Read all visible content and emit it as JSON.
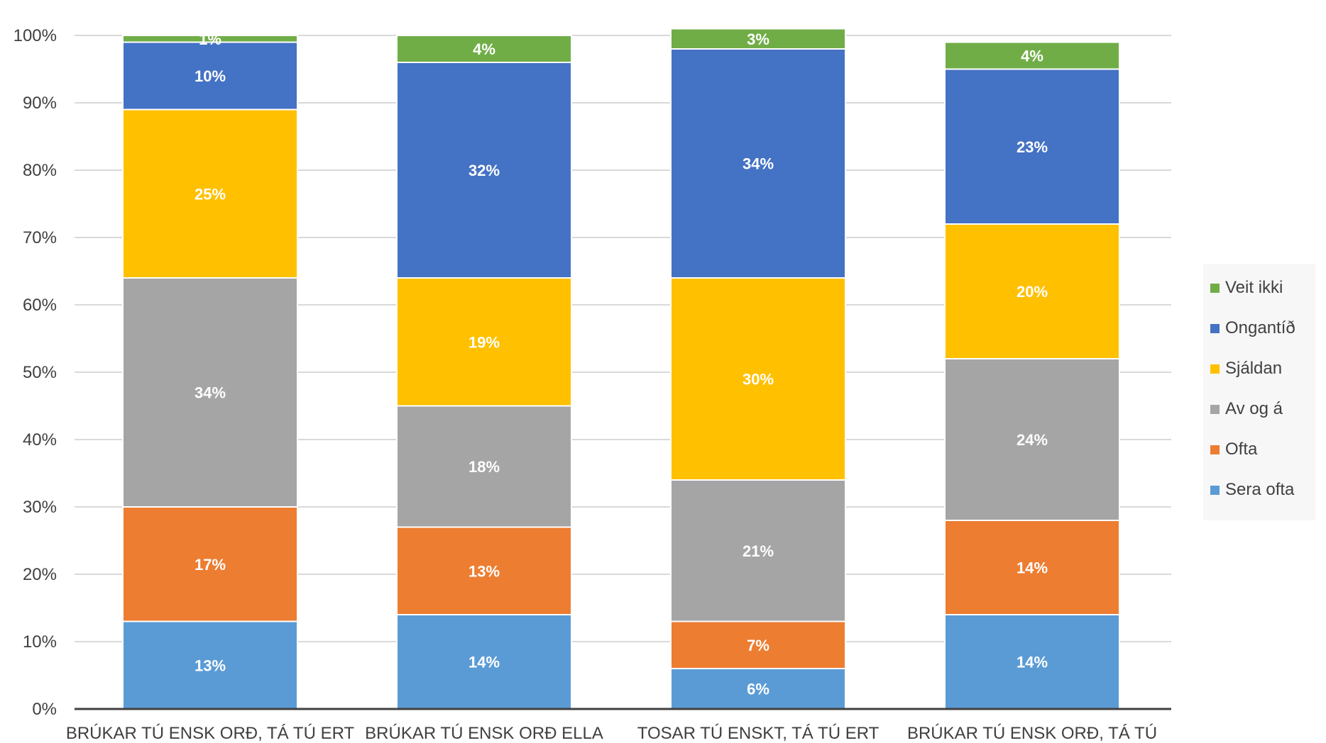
{
  "chart_data": {
    "type": "bar",
    "stacked": true,
    "percent": true,
    "categories": [
      "BRÚKAR TÚ ENSK ORÐ, TÁ TÚ ERT",
      "BRÚKAR TÚ ENSK ORÐ ELLA",
      "TOSAR TÚ ENSKT, TÁ TÚ ERT",
      "BRÚKAR TÚ ENSK ORÐ, TÁ TÚ"
    ],
    "series": [
      {
        "name": "Sera ofta",
        "color": "#5b9bd5",
        "values": [
          13,
          14,
          6,
          14
        ],
        "labels": [
          "13%",
          "14%",
          "6%",
          "14%"
        ]
      },
      {
        "name": "Ofta",
        "color": "#ed7d31",
        "values": [
          17,
          13,
          7,
          14
        ],
        "labels": [
          "17%",
          "13%",
          "7%",
          "14%"
        ]
      },
      {
        "name": "Av og á",
        "color": "#a5a5a5",
        "values": [
          34,
          18,
          21,
          24
        ],
        "labels": [
          "34%",
          "18%",
          "21%",
          "24%"
        ]
      },
      {
        "name": "Sjáldan",
        "color": "#ffc000",
        "values": [
          25,
          19,
          30,
          20
        ],
        "labels": [
          "25%",
          "19%",
          "30%",
          "20%"
        ]
      },
      {
        "name": "Ongantíð",
        "color": "#4472c4",
        "values": [
          10,
          32,
          34,
          23
        ],
        "labels": [
          "10%",
          "32%",
          "34%",
          "23%"
        ]
      },
      {
        "name": "Veit ikki",
        "color": "#70ad47",
        "values": [
          1,
          4,
          3,
          4
        ],
        "labels": [
          "1%",
          "4%",
          "3%",
          "4%"
        ]
      }
    ],
    "ylim": [
      0,
      100
    ],
    "yticks": [
      "0%",
      "10%",
      "20%",
      "30%",
      "40%",
      "50%",
      "60%",
      "70%",
      "80%",
      "90%",
      "100%"
    ],
    "grid": true,
    "legend_position": "right",
    "legend_order": [
      "Veit ikki",
      "Ongantíð",
      "Sjáldan",
      "Av og á",
      "Ofta",
      "Sera ofta"
    ]
  }
}
